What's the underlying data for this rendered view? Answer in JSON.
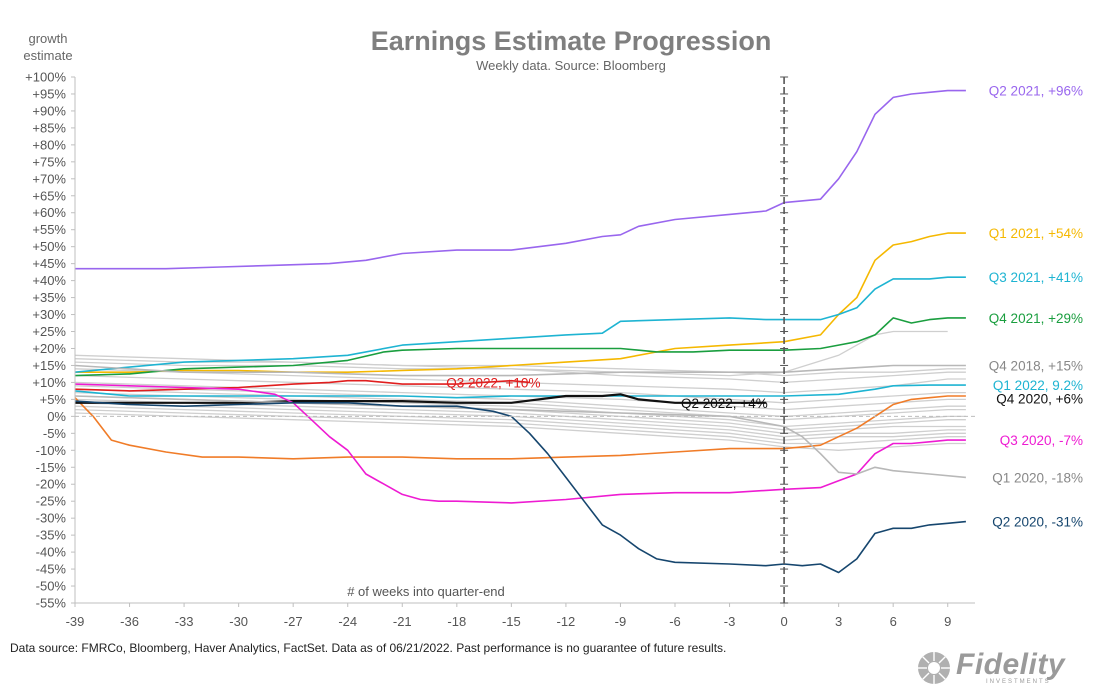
{
  "chart_data": {
    "type": "line",
    "title": "Earnings Estimate Progression",
    "subtitle": "Weekly data.  Source: Bloomberg",
    "ylabel": "growth estimate",
    "ylabel_lines": [
      "growth",
      "estimate"
    ],
    "xlabel": "# of weeks into quarter-end",
    "xlim": [
      -39,
      10.5
    ],
    "ylim": [
      -55,
      100
    ],
    "x_ticks": [
      -39,
      -36,
      -33,
      -30,
      -27,
      -24,
      -21,
      -18,
      -15,
      -12,
      -9,
      -6,
      -3,
      0,
      3,
      6,
      9
    ],
    "y_ticks": [
      -55,
      -50,
      -45,
      -40,
      -35,
      -30,
      -25,
      -20,
      -15,
      -10,
      -5,
      0,
      5,
      10,
      15,
      20,
      25,
      30,
      35,
      40,
      45,
      50,
      55,
      60,
      65,
      70,
      75,
      80,
      85,
      90,
      95,
      100
    ],
    "y_tick_labels": [
      "-55%",
      "-50%",
      "-45%",
      "-40%",
      "-35%",
      "-30%",
      "-25%",
      "-20%",
      "-15%",
      "-10%",
      "-5%",
      "0%",
      "+5%",
      "+10%",
      "+15%",
      "+20%",
      "+25%",
      "+30%",
      "+35%",
      "+40%",
      "+45%",
      "+50%",
      "+55%",
      "+60%",
      "+65%",
      "+70%",
      "+75%",
      "+80%",
      "+85%",
      "+90%",
      "+95%",
      "+100%"
    ],
    "grid": false,
    "zero_line": "dashed",
    "quarter_end_marker": 0,
    "series": [
      {
        "name": "Q2 2021, +96%",
        "color": "#9966ee",
        "x": [
          -39,
          -36,
          -34,
          -31,
          -28,
          -25,
          -23,
          -21,
          -18,
          -15,
          -12,
          -10,
          -9,
          -8,
          -6,
          -3,
          -1,
          0,
          2,
          3,
          4,
          5,
          6,
          7,
          8,
          9,
          10
        ],
        "y": [
          43.5,
          43.5,
          43.5,
          44,
          44.5,
          45,
          46,
          48,
          49,
          49,
          51,
          53,
          53.5,
          56,
          58,
          59.5,
          60.5,
          63,
          64,
          70,
          78,
          89,
          94,
          95,
          95.5,
          96,
          96
        ]
      },
      {
        "name": "Q1 2021, +54%",
        "color": "#f5b800",
        "x": [
          -39,
          -36,
          -33,
          -30,
          -27,
          -24,
          -21,
          -18,
          -15,
          -12,
          -9,
          -6,
          -3,
          0,
          2,
          3,
          4,
          5,
          6,
          7,
          8,
          9,
          10
        ],
        "y": [
          13,
          13,
          13.5,
          13.5,
          13,
          13,
          13.5,
          14,
          15,
          16,
          17,
          20,
          21,
          22,
          24,
          30,
          35,
          46,
          50.5,
          51.5,
          53,
          54,
          54
        ]
      },
      {
        "name": "Q3 2021, +41%",
        "color": "#1eb4d2",
        "x": [
          -39,
          -36,
          -33,
          -30,
          -27,
          -24,
          -21,
          -18,
          -15,
          -12,
          -10,
          -9,
          -6,
          -3,
          -1,
          0,
          2,
          3,
          4,
          5,
          6,
          7,
          8,
          9,
          10
        ],
        "y": [
          13,
          14.5,
          16,
          16.5,
          17,
          18,
          21,
          22,
          23,
          24,
          24.5,
          28,
          28.5,
          29,
          28.5,
          28.5,
          28.5,
          30,
          32,
          37.5,
          40.5,
          40.5,
          40.5,
          41,
          41
        ]
      },
      {
        "name": "Q4 2021, +29%",
        "color": "#1a9e3f",
        "x": [
          -39,
          -36,
          -33,
          -30,
          -27,
          -24,
          -22,
          -21,
          -18,
          -15,
          -12,
          -9,
          -7,
          -5,
          -3,
          0,
          2,
          3,
          4,
          5,
          6,
          7,
          8,
          9,
          10
        ],
        "y": [
          12,
          12.5,
          14,
          14.5,
          15,
          16.5,
          19,
          19.5,
          20,
          20,
          20,
          20,
          19,
          19,
          19.5,
          19.5,
          20,
          21,
          22,
          24,
          29,
          27.5,
          28.5,
          29,
          29
        ]
      },
      {
        "name": "Q4 2018, +15%",
        "color": "#b8b8b8",
        "x": [
          -39,
          -33,
          -27,
          -21,
          -15,
          -9,
          -3,
          0,
          3,
          6,
          9,
          10
        ],
        "y": [
          15,
          13,
          13,
          12,
          12,
          13,
          13,
          13,
          14,
          15,
          15,
          15
        ]
      },
      {
        "name": "Q3 2022, +10%",
        "color": "#e01e1e",
        "x": [
          -39,
          -36,
          -33,
          -30,
          -27,
          -25,
          -24,
          -23,
          -21,
          -18,
          -15,
          -14
        ],
        "y": [
          8,
          7.5,
          8,
          8.5,
          9.5,
          10,
          10.5,
          10.5,
          9.5,
          9.5,
          10.5,
          10
        ]
      },
      {
        "name": "Q1 2022, 9.2%",
        "color": "#1eb4d2",
        "x": [
          -39,
          -36,
          -33,
          -30,
          -27,
          -24,
          -21,
          -18,
          -15,
          -12,
          -9,
          -6,
          -3,
          0,
          3,
          5,
          6,
          8,
          10
        ],
        "y": [
          7.5,
          6,
          6,
          6,
          6,
          6,
          6,
          5.5,
          6,
          6,
          6,
          6,
          6,
          6,
          6.5,
          8,
          9,
          9.2,
          9.2
        ]
      },
      {
        "name": "Q4 2020, +6%",
        "color": "#f07c28",
        "x": [
          -39,
          -38,
          -37,
          -36,
          -34,
          -32,
          -30,
          -27,
          -24,
          -21,
          -18,
          -15,
          -12,
          -9,
          -6,
          -3,
          0,
          1,
          2,
          3,
          4,
          5,
          6,
          7,
          8,
          9,
          10
        ],
        "y": [
          5.5,
          0,
          -7,
          -8.5,
          -10.5,
          -12,
          -12,
          -12.5,
          -12,
          -12,
          -12.5,
          -12.5,
          -12,
          -11.5,
          -10.5,
          -9.5,
          -9.5,
          -9,
          -8.5,
          -6,
          -3.5,
          0,
          3.5,
          5,
          5.5,
          6,
          6
        ]
      },
      {
        "name": "Q2 2022, +4%",
        "color": "#111111",
        "x": [
          -39,
          -36,
          -33,
          -30,
          -27,
          -24,
          -21,
          -18,
          -15,
          -12,
          -10,
          -9,
          -8,
          -6,
          -3,
          -1
        ],
        "y": [
          4,
          4,
          4,
          4,
          4.5,
          4.5,
          4.5,
          4,
          4,
          6,
          6,
          6.5,
          5,
          4,
          4,
          4
        ]
      },
      {
        "name": "Q3 2020, -7%",
        "color": "#ee1bd2",
        "x": [
          -39,
          -36,
          -33,
          -30,
          -28,
          -27,
          -26,
          -25,
          -24,
          -23,
          -22,
          -21,
          -20,
          -19,
          -18,
          -15,
          -12,
          -9,
          -6,
          -3,
          0,
          2,
          3,
          4,
          5,
          6,
          7,
          8,
          9,
          10
        ],
        "y": [
          9.5,
          9,
          8.5,
          8,
          6.5,
          4,
          -1,
          -6,
          -10,
          -17,
          -20,
          -23,
          -24.5,
          -25,
          -25,
          -25.5,
          -24.5,
          -23,
          -22.5,
          -22.5,
          -21.5,
          -21,
          -19,
          -17,
          -11,
          -8,
          -8,
          -7.5,
          -7,
          -7
        ]
      },
      {
        "name": "Q1 2020, -18%",
        "color": "#b8b8b8",
        "x": [
          -39,
          -33,
          -27,
          -21,
          -15,
          -9,
          -3,
          0,
          1,
          2,
          3,
          4,
          5,
          6,
          8,
          10
        ],
        "y": [
          6,
          5,
          4,
          3,
          2,
          1,
          0,
          -3,
          -6,
          -11,
          -16.5,
          -17,
          -15,
          -16,
          -17,
          -18
        ]
      },
      {
        "name": "Q2 2020, -31%",
        "color": "#16466e",
        "x": [
          -39,
          -36,
          -33,
          -30,
          -27,
          -24,
          -21,
          -18,
          -16,
          -15,
          -14,
          -13,
          -12,
          -11,
          -10,
          -9,
          -8,
          -7,
          -6,
          -3,
          -1,
          0,
          1,
          2,
          3,
          4,
          5,
          6,
          7,
          8,
          9,
          10
        ],
        "y": [
          4.5,
          3.5,
          3,
          3.5,
          4,
          4,
          3,
          3,
          1.5,
          0,
          -5,
          -11,
          -18,
          -25,
          -32,
          -35,
          -39,
          -42,
          -43,
          -43.5,
          -44,
          -43.5,
          -44,
          -43.5,
          -46,
          -42,
          -34.5,
          -33,
          -33,
          -32,
          -31.5,
          -31
        ]
      }
    ],
    "background_series": [
      {
        "color": "#cfcfcf",
        "x": [
          -39,
          -33,
          -27,
          -21,
          -15,
          -9,
          -3,
          0,
          3,
          6,
          9,
          10
        ],
        "y": [
          18,
          17,
          16,
          15,
          14,
          12,
          11,
          10,
          11,
          12,
          13,
          13
        ]
      },
      {
        "color": "#cfcfcf",
        "x": [
          -39,
          -33,
          -27,
          -21,
          -15,
          -9,
          -3,
          0,
          3,
          6,
          9,
          10
        ],
        "y": [
          17,
          16,
          16,
          15,
          15,
          14,
          13,
          12,
          13,
          13,
          14,
          14
        ]
      },
      {
        "color": "#cfcfcf",
        "x": [
          -39,
          -33,
          -27,
          -21,
          -15,
          -9,
          -3,
          0,
          3,
          5,
          6,
          9
        ],
        "y": [
          16,
          15,
          15,
          14,
          14,
          13,
          12,
          13,
          18,
          24,
          25,
          25
        ]
      },
      {
        "color": "#cfcfcf",
        "x": [
          -39,
          -33,
          -27,
          -21,
          -15,
          -9,
          -3,
          0,
          3,
          6,
          9,
          10
        ],
        "y": [
          14,
          13,
          12,
          11,
          10,
          9,
          8,
          7,
          8,
          9,
          11,
          11
        ]
      },
      {
        "color": "#cfcfcf",
        "x": [
          -39,
          -33,
          -27,
          -21,
          -15,
          -9,
          -3,
          0,
          3,
          6,
          9,
          10
        ],
        "y": [
          12,
          11,
          10,
          9,
          8,
          7,
          5,
          4,
          5,
          6,
          7,
          7
        ]
      },
      {
        "color": "#cfcfcf",
        "x": [
          -39,
          -33,
          -27,
          -21,
          -15,
          -9,
          -3,
          0,
          3,
          6,
          9,
          10
        ],
        "y": [
          10,
          9,
          8,
          7,
          6,
          5,
          3,
          2,
          3,
          4,
          5,
          5
        ]
      },
      {
        "color": "#cfcfcf",
        "x": [
          -39,
          -33,
          -27,
          -21,
          -15,
          -9,
          -3,
          0,
          3,
          6,
          9,
          10
        ],
        "y": [
          9,
          8,
          7,
          6,
          5,
          3,
          1,
          0,
          1,
          2,
          3,
          3
        ]
      },
      {
        "color": "#cfcfcf",
        "x": [
          -39,
          -33,
          -27,
          -21,
          -15,
          -9,
          -3,
          0,
          3,
          6,
          9,
          10
        ],
        "y": [
          8,
          7,
          6,
          5,
          4,
          2,
          0,
          -1,
          0,
          1,
          2,
          2
        ]
      },
      {
        "color": "#cfcfcf",
        "x": [
          -39,
          -33,
          -27,
          -21,
          -15,
          -9,
          -3,
          0,
          3,
          6,
          9,
          10
        ],
        "y": [
          7,
          6,
          5,
          4,
          3,
          1,
          -1,
          -3,
          -2,
          -1,
          0,
          0
        ]
      },
      {
        "color": "#cfcfcf",
        "x": [
          -39,
          -33,
          -27,
          -21,
          -15,
          -9,
          -3,
          0,
          3,
          6,
          9,
          10
        ],
        "y": [
          6,
          5,
          4,
          3,
          2,
          0,
          -2,
          -4,
          -3,
          -2,
          -1,
          -1
        ]
      },
      {
        "color": "#cfcfcf",
        "x": [
          -39,
          -33,
          -27,
          -21,
          -15,
          -9,
          -3,
          0,
          3,
          6,
          9,
          10
        ],
        "y": [
          5,
          4,
          3,
          2,
          1,
          -1,
          -3,
          -5,
          -4,
          -3,
          -3,
          -3
        ]
      },
      {
        "color": "#cfcfcf",
        "x": [
          -39,
          -33,
          -27,
          -21,
          -15,
          -9,
          -3,
          0,
          3,
          6,
          9,
          10
        ],
        "y": [
          4,
          3,
          2,
          1,
          0,
          -2,
          -4,
          -6,
          -5,
          -5,
          -4,
          -4
        ]
      },
      {
        "color": "#cfcfcf",
        "x": [
          -39,
          -33,
          -27,
          -21,
          -15,
          -9,
          -3,
          0,
          3,
          6,
          9,
          10
        ],
        "y": [
          3,
          2,
          1,
          0,
          -1,
          -3,
          -5,
          -7,
          -6,
          -6,
          -5,
          -5
        ]
      },
      {
        "color": "#cfcfcf",
        "x": [
          -39,
          -33,
          -27,
          -21,
          -15,
          -9,
          -3,
          0,
          3,
          6,
          9,
          10
        ],
        "y": [
          2,
          1,
          0,
          -1,
          -2,
          -4,
          -6,
          -8,
          -8,
          -7,
          -6,
          -6
        ]
      },
      {
        "color": "#cfcfcf",
        "x": [
          -39,
          -33,
          -27,
          -21,
          -15,
          -9,
          -3,
          0,
          3,
          6,
          9,
          10
        ],
        "y": [
          1,
          0,
          -1,
          -2,
          -3,
          -5,
          -7,
          -9,
          -10,
          -9,
          -8,
          -8
        ]
      }
    ],
    "labels": [
      {
        "text": "Q2 2021, +96%",
        "color": "#9966ee",
        "y": 96
      },
      {
        "text": "Q1 2021, +54%",
        "color": "#f5b800",
        "y": 54
      },
      {
        "text": "Q3 2021, +41%",
        "color": "#1eb4d2",
        "y": 41
      },
      {
        "text": "Q4 2021, +29%",
        "color": "#1a9e3f",
        "y": 29
      },
      {
        "text": "Q4 2018, +15%",
        "color": "#888888",
        "y": 15
      },
      {
        "text": "Q1 2022, 9.2%",
        "color": "#1eb4d2",
        "y": 9.2
      },
      {
        "text": "Q4 2020, +6%",
        "color": "#111111",
        "y": 5.3
      },
      {
        "text": "Q3 2020, -7%",
        "color": "#ee1bd2",
        "y": -7
      },
      {
        "text": "Q1 2020, -18%",
        "color": "#888888",
        "y": -18
      },
      {
        "text": "Q2 2020, -31%",
        "color": "#16466e",
        "y": -31
      }
    ],
    "inline_labels": [
      {
        "text": "Q3 2022, +10%",
        "color": "#e01e1e",
        "x": -13.4,
        "y": 10
      },
      {
        "text": "Q2 2022, +4%",
        "color": "#111111",
        "x": -0.9,
        "y": 4
      }
    ]
  },
  "footnote": "Data source: FMRCo, Bloomberg, Haver Analytics, FactSet. Data as of 06/21/2022. Past performance is no guarantee of future results.",
  "logo": {
    "word": "Fidelity",
    "sub": "INVESTMENTS"
  }
}
